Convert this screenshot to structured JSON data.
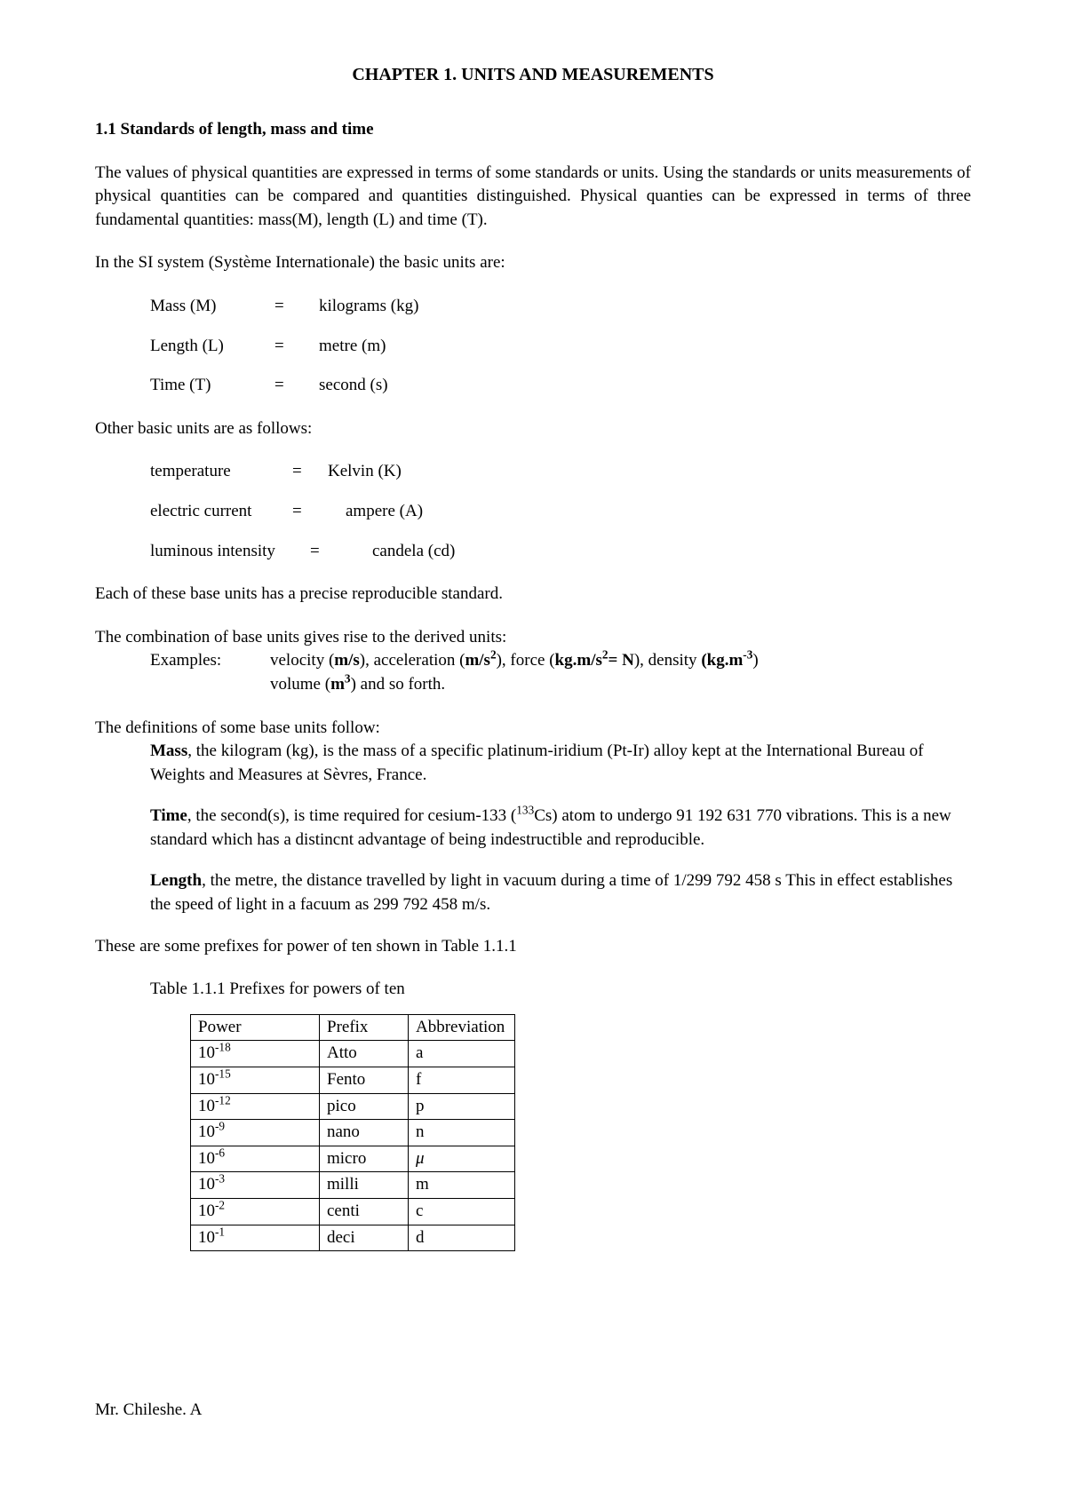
{
  "chapter_title": "CHAPTER 1. UNITS AND MEASUREMENTS",
  "section_heading": "1.1 Standards of length, mass and time",
  "para1": "The values of physical quantities are expressed in terms of some standards or units. Using the standards or units measurements of physical quantities can be compared and quantities distinguished. Physical quanties can be expressed in terms of three fundamental quantities: mass(M), length (L) and time (T).",
  "para2": "In the SI system (Système Internationale) the basic units are:",
  "base_units": [
    {
      "name": "Mass (M)",
      "eq": "=",
      "value": "kilograms (kg)"
    },
    {
      "name": "Length (L)",
      "eq": "=",
      "value": "metre (m)"
    },
    {
      "name": "Time (T)",
      "eq": "=",
      "value": "second (s)"
    }
  ],
  "para3": "Other basic units are as follows:",
  "other_units": [
    {
      "name": "temperature",
      "eq": "=",
      "value": "Kelvin (K)"
    },
    {
      "name": "electric current",
      "eq": "=",
      "value": "ampere (A)"
    },
    {
      "name": "luminous intensity",
      "eq": "=",
      "value": "candela (cd)"
    }
  ],
  "para4": "Each of these base units has a precise reproducible standard.",
  "para5": "The combination of base units gives rise to the derived units:",
  "examples_label": "Examples:",
  "examples_pre": "velocity (",
  "ex_velocity": "m/s",
  "ex_mid1": "), acceleration (",
  "ex_accel": "m/s",
  "ex_mid2": "), force (",
  "ex_force1": "kg.m/s",
  "ex_force2": "= N",
  "ex_mid3": "), density ",
  "ex_density": "(kg.m",
  "ex_density_close": ")",
  "examples_line2a": "volume (",
  "ex_volume": "m",
  "examples_line2b": ") and so forth.",
  "para6": "The definitions of some base units follow:",
  "def_mass_label": "Mass",
  "def_mass_text": ", the kilogram (kg), is the mass of a specific platinum-iridium (Pt-Ir) alloy kept at the International Bureau of Weights and Measures at Sèvres, France.",
  "def_time_label": "Time",
  "def_time_text1": ", the second(s), is time required for cesium-133 (",
  "def_time_cs": "Cs) atom to undergo 91 192 631 770 vibrations. This is a new standard which has a distincnt advantage of being indestructible and reproducible.",
  "def_length_label": "Length",
  "def_length_text": ", the metre, the distance travelled by light in vacuum during a time of 1/299 792 458 s This in effect establishes the speed of light in a facuum as 299 792 458 m/s.",
  "para7": "These are some prefixes for power of ten shown in Table 1.1.1",
  "table_caption": "Table 1.1.1 Prefixes for powers of ten",
  "table": {
    "columns": [
      "Power",
      "Prefix",
      "Abbreviation"
    ],
    "rows": [
      {
        "base": "10",
        "exp": "-18",
        "prefix": "Atto",
        "abbr": "a"
      },
      {
        "base": "10",
        "exp": "-15",
        "prefix": "Fento",
        "abbr": "f"
      },
      {
        "base": "10",
        "exp": "-12",
        "prefix": "pico",
        "abbr": "p"
      },
      {
        "base": "10",
        "exp": "-9",
        "prefix": "nano",
        "abbr": "n"
      },
      {
        "base": "10",
        "exp": "-6",
        "prefix": "micro",
        "abbr": "μ"
      },
      {
        "base": "10",
        "exp": "-3",
        "prefix": "milli",
        "abbr": "m"
      },
      {
        "base": "10",
        "exp": "-2",
        "prefix": "centi",
        "abbr": "c"
      },
      {
        "base": "10",
        "exp": "-1",
        "prefix": "deci",
        "abbr": "d"
      }
    ]
  },
  "footer": "Mr. Chileshe. A",
  "sup2": "2",
  "sup3": "3",
  "supm3": "-3",
  "sup133": "133"
}
